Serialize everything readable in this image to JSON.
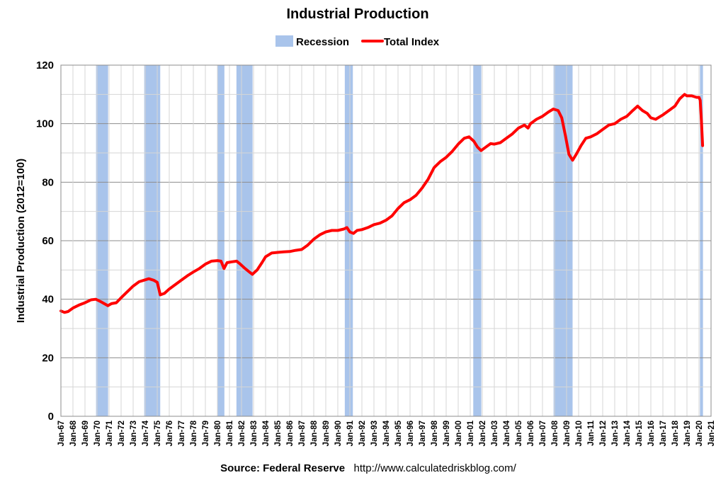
{
  "chart_data": {
    "type": "line",
    "title": "Industrial Production",
    "ylabel": "Industrial Production (2012=100)",
    "xlabel": "",
    "ylim": [
      0,
      120
    ],
    "yticks": [
      "0",
      "20",
      "40",
      "60",
      "80",
      "100",
      "120"
    ],
    "xlim": [
      1967.0,
      2021.0
    ],
    "grid": true,
    "legend_position": "top-center",
    "legend": {
      "recession_label": "Recession",
      "series_label": "Total Index"
    },
    "tick_labels": [
      "Jan-67",
      "Jan-68",
      "Jan-69",
      "Jan-70",
      "Jan-71",
      "Jan-72",
      "Jan-73",
      "Jan-74",
      "Jan-75",
      "Jan-76",
      "Jan-77",
      "Jan-78",
      "Jan-79",
      "Jan-80",
      "Jan-81",
      "Jan-82",
      "Jan-83",
      "Jan-84",
      "Jan-85",
      "Jan-86",
      "Jan-87",
      "Jan-88",
      "Jan-89",
      "Jan-90",
      "Jan-91",
      "Jan-92",
      "Jan-93",
      "Jan-94",
      "Jan-95",
      "Jan-96",
      "Jan-97",
      "Jan-98",
      "Jan-99",
      "Jan-00",
      "Jan-01",
      "Jan-02",
      "Jan-03",
      "Jan-04",
      "Jan-05",
      "Jan-06",
      "Jan-07",
      "Jan-08",
      "Jan-09",
      "Jan-10",
      "Jan-11",
      "Jan-12",
      "Jan-13",
      "Jan-14",
      "Jan-15",
      "Jan-16",
      "Jan-17",
      "Jan-18",
      "Jan-19",
      "Jan-20",
      "Jan-21"
    ],
    "recessions": [
      [
        1969.92,
        1970.92
      ],
      [
        1973.92,
        1975.25
      ],
      [
        1980.0,
        1980.58
      ],
      [
        1981.58,
        1982.92
      ],
      [
        1990.58,
        1991.25
      ],
      [
        2001.25,
        2001.92
      ],
      [
        2007.92,
        2009.5
      ],
      [
        2020.08,
        2020.33
      ]
    ],
    "series": [
      {
        "name": "Total Index",
        "color": "#ff0000",
        "x": [
          1967.0,
          1967.3,
          1967.6,
          1968.0,
          1968.5,
          1969.0,
          1969.5,
          1969.9,
          1970.3,
          1970.6,
          1970.9,
          1971.2,
          1971.6,
          1972.0,
          1972.5,
          1973.0,
          1973.5,
          1973.9,
          1974.3,
          1974.7,
          1975.0,
          1975.25,
          1975.6,
          1976.0,
          1976.5,
          1977.0,
          1977.5,
          1978.0,
          1978.5,
          1979.0,
          1979.5,
          1980.0,
          1980.3,
          1980.55,
          1980.8,
          1981.2,
          1981.6,
          1981.9,
          1982.3,
          1982.6,
          1982.9,
          1983.3,
          1983.7,
          1984.0,
          1984.5,
          1985.0,
          1985.5,
          1986.0,
          1986.5,
          1987.0,
          1987.5,
          1988.0,
          1988.5,
          1989.0,
          1989.5,
          1990.0,
          1990.5,
          1990.75,
          1991.0,
          1991.3,
          1991.6,
          1992.0,
          1992.5,
          1993.0,
          1993.5,
          1994.0,
          1994.5,
          1995.0,
          1995.5,
          1996.0,
          1996.5,
          1997.0,
          1997.5,
          1998.0,
          1998.5,
          1999.0,
          1999.5,
          2000.0,
          2000.5,
          2000.9,
          2001.3,
          2001.6,
          2001.9,
          2002.3,
          2002.7,
          2003.0,
          2003.5,
          2004.0,
          2004.5,
          2005.0,
          2005.5,
          2005.8,
          2006.0,
          2006.5,
          2007.0,
          2007.5,
          2007.9,
          2008.3,
          2008.6,
          2008.9,
          2009.2,
          2009.5,
          2009.8,
          2010.2,
          2010.6,
          2011.0,
          2011.5,
          2012.0,
          2012.5,
          2013.0,
          2013.5,
          2014.0,
          2014.5,
          2014.9,
          2015.3,
          2015.7,
          2016.0,
          2016.4,
          2016.8,
          2017.0,
          2017.5,
          2018.0,
          2018.4,
          2018.8,
          2019.0,
          2019.4,
          2019.8,
          2020.0,
          2020.1,
          2020.2,
          2020.3
        ],
        "values": [
          36.0,
          35.5,
          35.8,
          37.0,
          38.0,
          38.8,
          39.8,
          40.0,
          39.2,
          38.5,
          37.8,
          38.5,
          38.8,
          40.5,
          42.5,
          44.5,
          46.0,
          46.5,
          47.0,
          46.5,
          45.8,
          41.5,
          42.0,
          43.5,
          45.0,
          46.5,
          48.0,
          49.3,
          50.5,
          52.0,
          53.0,
          53.2,
          53.0,
          50.5,
          52.5,
          52.8,
          53.0,
          52.0,
          50.5,
          49.5,
          48.5,
          50.0,
          52.5,
          54.5,
          55.8,
          56.0,
          56.2,
          56.3,
          56.7,
          57.0,
          58.5,
          60.5,
          62.0,
          63.0,
          63.5,
          63.5,
          64.0,
          64.5,
          63.0,
          62.5,
          63.5,
          63.8,
          64.5,
          65.5,
          66.0,
          67.0,
          68.5,
          71.0,
          73.0,
          74.0,
          75.5,
          78.0,
          81.0,
          85.0,
          87.0,
          88.5,
          90.5,
          93.0,
          95.0,
          95.5,
          94.0,
          92.0,
          90.8,
          92.0,
          93.2,
          93.0,
          93.5,
          95.0,
          96.5,
          98.5,
          99.5,
          98.5,
          100.0,
          101.5,
          102.5,
          104.0,
          105.0,
          104.5,
          102.0,
          96.0,
          89.5,
          87.5,
          89.5,
          92.5,
          95.0,
          95.5,
          96.5,
          98.0,
          99.5,
          100.0,
          101.5,
          102.5,
          104.5,
          106.0,
          104.5,
          103.5,
          102.0,
          101.5,
          102.5,
          103.0,
          104.5,
          106.0,
          108.5,
          110.0,
          109.5,
          109.5,
          109.0,
          109.0,
          108.0,
          101.0,
          92.5
        ]
      }
    ]
  },
  "source": {
    "label": "Source: Federal Reserve",
    "url": "http://www.calculatedriskblog.com/"
  },
  "colors": {
    "recession": "#a9c4eb",
    "series": "#ff0000",
    "grid": "#c8c8c8"
  }
}
